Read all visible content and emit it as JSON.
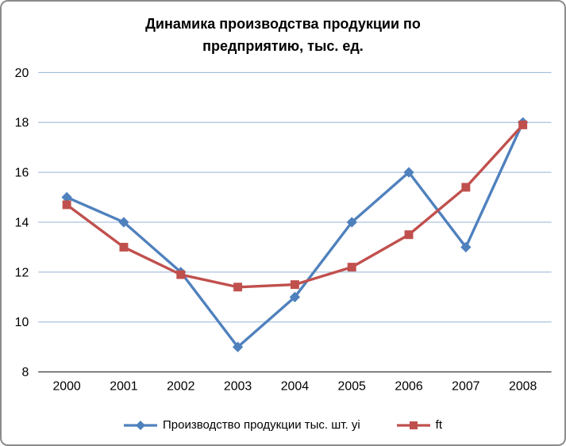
{
  "chart": {
    "title_line1": "Динамика производства продукции по",
    "title_line2": "предприятию, тыс. ед."
  },
  "chart_data": {
    "type": "line",
    "title": "Динамика производства продукции по предприятию, тыс. ед.",
    "categories": [
      "2000",
      "2001",
      "2002",
      "2003",
      "2004",
      "2005",
      "2006",
      "2007",
      "2008"
    ],
    "series": [
      {
        "name": "Производство продукции тыс. шт. yi",
        "marker": "diamond",
        "color": "#4F81BD",
        "values": [
          15,
          14,
          12,
          9,
          11,
          14,
          16,
          13,
          18
        ]
      },
      {
        "name": "ft",
        "marker": "square",
        "color": "#C0504D",
        "values": [
          14.7,
          13,
          11.9,
          11.4,
          11.5,
          12.2,
          13.5,
          15.4,
          17.9
        ]
      }
    ],
    "ylim": [
      8,
      20
    ],
    "yticks": [
      8,
      10,
      12,
      14,
      16,
      18,
      20
    ],
    "grid": true,
    "legend_position": "bottom",
    "style": {
      "grid_color": "#95B3D7",
      "axis_color": "#404040",
      "label_color": "#000000",
      "background": "#FFFFFF",
      "border_color": "#8C8C8C"
    }
  }
}
